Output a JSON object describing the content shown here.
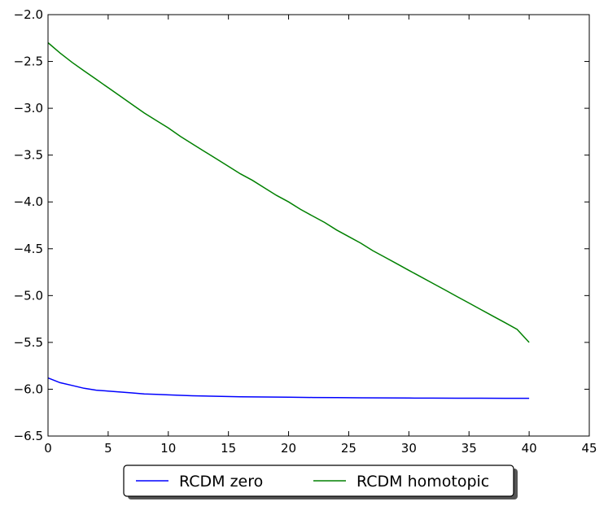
{
  "chart_data": {
    "type": "line",
    "title": "",
    "xlabel": "",
    "ylabel": "",
    "xlim": [
      0,
      45
    ],
    "ylim": [
      -6.5,
      -2.0
    ],
    "xticks": [
      0,
      5,
      10,
      15,
      20,
      25,
      30,
      35,
      40,
      45
    ],
    "yticks": [
      -2.0,
      -2.5,
      -3.0,
      -3.5,
      -4.0,
      -4.5,
      -5.0,
      -5.5,
      -6.0,
      -6.5
    ],
    "xtick_labels": [
      "0",
      "5",
      "10",
      "15",
      "20",
      "25",
      "30",
      "35",
      "40",
      "45"
    ],
    "ytick_labels": [
      "−2.0",
      "−2.5",
      "−3.0",
      "−3.5",
      "−4.0",
      "−4.5",
      "−5.0",
      "−5.5",
      "−6.0",
      "−6.5"
    ],
    "grid": false,
    "legend_position": "bottom-center-outside",
    "series": [
      {
        "name": "RCDM zero",
        "color": "#0000ff",
        "x": [
          0,
          1,
          2,
          3,
          4,
          5,
          6,
          7,
          8,
          9,
          10,
          12,
          14,
          16,
          18,
          20,
          22,
          24,
          26,
          28,
          30,
          32,
          34,
          36,
          38,
          40
        ],
        "y": [
          -5.88,
          -5.93,
          -5.96,
          -5.99,
          -6.01,
          -6.02,
          -6.03,
          -6.04,
          -6.05,
          -6.055,
          -6.06,
          -6.07,
          -6.075,
          -6.08,
          -6.083,
          -6.085,
          -6.088,
          -6.09,
          -6.092,
          -6.093,
          -6.094,
          -6.095,
          -6.096,
          -6.096,
          -6.097,
          -6.097
        ]
      },
      {
        "name": "RCDM homotopic",
        "color": "#008000",
        "x": [
          0,
          1,
          2,
          3,
          4,
          5,
          6,
          7,
          8,
          9,
          10,
          11,
          12,
          13,
          14,
          15,
          16,
          17,
          18,
          19,
          20,
          21,
          22,
          23,
          24,
          25,
          26,
          27,
          28,
          29,
          30,
          31,
          32,
          33,
          34,
          35,
          36,
          37,
          38,
          39,
          40
        ],
        "y": [
          -2.3,
          -2.41,
          -2.51,
          -2.6,
          -2.69,
          -2.78,
          -2.87,
          -2.96,
          -3.05,
          -3.13,
          -3.21,
          -3.3,
          -3.38,
          -3.46,
          -3.54,
          -3.62,
          -3.7,
          -3.77,
          -3.85,
          -3.93,
          -4.0,
          -4.08,
          -4.15,
          -4.22,
          -4.3,
          -4.37,
          -4.44,
          -4.52,
          -4.59,
          -4.66,
          -4.73,
          -4.8,
          -4.87,
          -4.94,
          -5.01,
          -5.08,
          -5.15,
          -5.22,
          -5.29,
          -5.36,
          -5.5
        ]
      }
    ]
  }
}
